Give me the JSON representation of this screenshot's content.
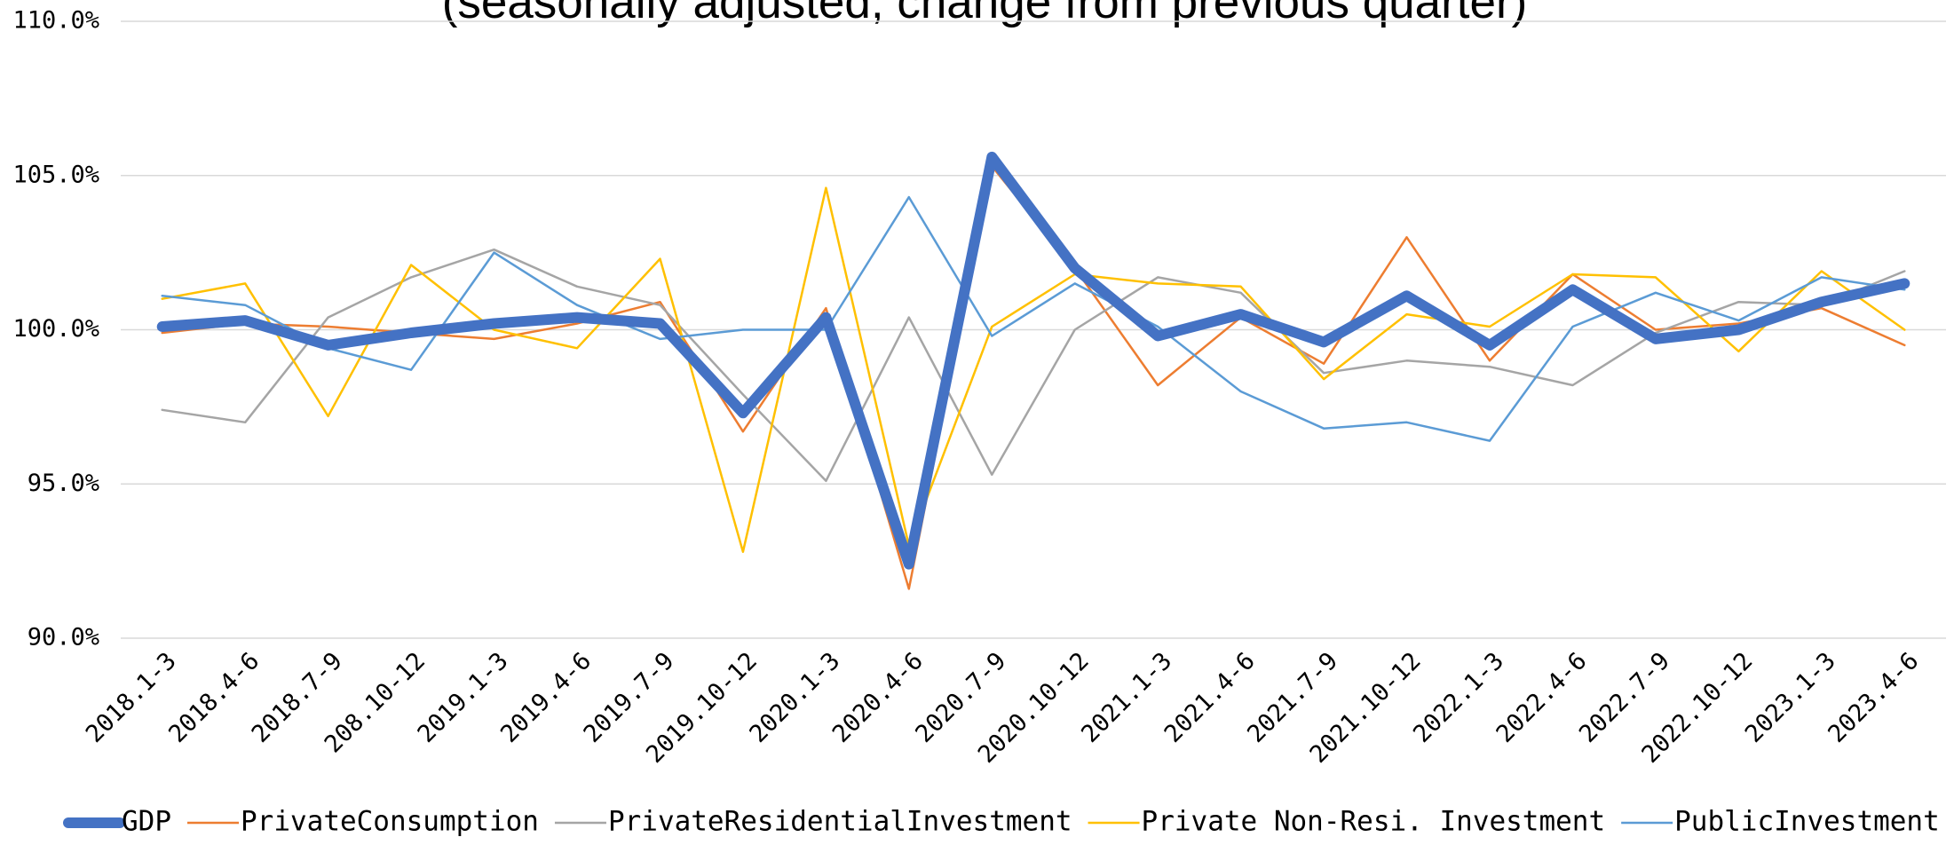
{
  "chart_data": {
    "type": "line",
    "subtitle": "(seasonally adjusted, change from previous quarter)",
    "categories": [
      "2018.1-3",
      "2018.4-6",
      "2018.7-9",
      "208.10-12",
      "2019.1-3",
      "2019.4-6",
      "2019.7-9",
      "2019.10-12",
      "2020.1-3",
      "2020.4-6",
      "2020.7-9",
      "2020.10-12",
      "2021.1-3",
      "2021.4-6",
      "2021.7-9",
      "2021.10-12",
      "2022.1-3",
      "2022.4-6",
      "2022.7-9",
      "2022.10-12",
      "2023.1-3",
      "2023.4-6"
    ],
    "series": [
      {
        "name": "GDP",
        "color": "#4472c4",
        "width": 12,
        "values": [
          100.1,
          100.3,
          99.5,
          99.9,
          100.2,
          100.4,
          100.2,
          97.3,
          100.4,
          92.4,
          105.6,
          102.0,
          99.8,
          100.5,
          99.6,
          101.1,
          99.5,
          101.3,
          99.7,
          100.0,
          100.9,
          101.5
        ]
      },
      {
        "name": "PrivateConsumption",
        "color": "#ed7d31",
        "width": 2.5,
        "values": [
          99.9,
          100.2,
          100.1,
          99.9,
          99.7,
          100.2,
          100.9,
          96.7,
          100.7,
          91.6,
          105.3,
          102.0,
          98.2,
          100.4,
          98.9,
          103.0,
          99.0,
          101.8,
          100.0,
          100.2,
          100.7,
          99.5
        ]
      },
      {
        "name": "PrivateResidentialInvestment",
        "color": "#a5a5a5",
        "width": 2.5,
        "values": [
          97.4,
          97.0,
          100.4,
          101.7,
          102.6,
          101.4,
          100.8,
          97.9,
          95.1,
          100.4,
          95.3,
          100.0,
          101.7,
          101.2,
          98.6,
          99.0,
          98.8,
          98.2,
          99.9,
          100.9,
          100.8,
          101.9
        ]
      },
      {
        "name": "Private Non-Resi. Investment",
        "color": "#ffc000",
        "width": 2.5,
        "values": [
          101.0,
          101.5,
          97.2,
          102.1,
          100.0,
          99.4,
          102.3,
          92.8,
          104.6,
          93.0,
          100.1,
          101.8,
          101.5,
          101.4,
          98.4,
          100.5,
          100.1,
          101.8,
          101.7,
          99.3,
          101.9,
          100.0
        ]
      },
      {
        "name": "PublicInvestment",
        "color": "#5b9bd5",
        "width": 2.5,
        "values": [
          101.1,
          100.8,
          99.4,
          98.7,
          102.5,
          100.8,
          99.7,
          100.0,
          100.0,
          104.3,
          99.8,
          101.5,
          100.1,
          98.0,
          96.8,
          97.0,
          96.4,
          100.1,
          101.2,
          100.3,
          101.7,
          101.3
        ]
      }
    ],
    "ylim": [
      90,
      110
    ],
    "yticks": [
      {
        "value": 90,
        "label": "90.0%"
      },
      {
        "value": 95,
        "label": "95.0%"
      },
      {
        "value": 100,
        "label": "100.0%"
      },
      {
        "value": 105,
        "label": "105.0%"
      },
      {
        "value": 110,
        "label": "110.0%"
      }
    ],
    "grid": true,
    "legend": "bottom"
  }
}
